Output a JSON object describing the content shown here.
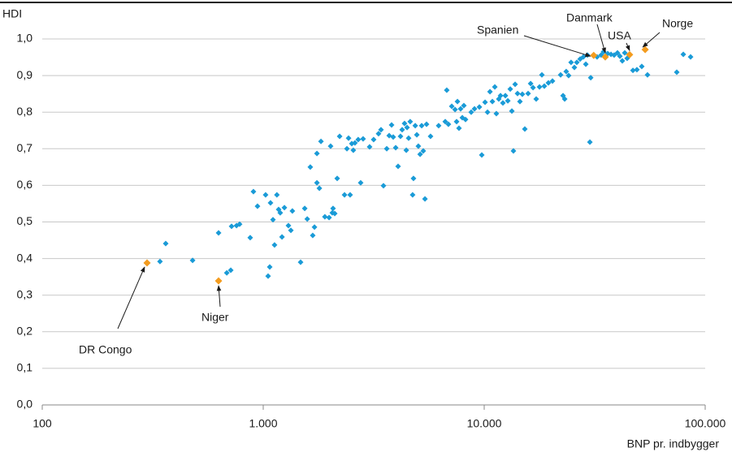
{
  "chart_data": {
    "type": "scatter",
    "ylabel": "HDI",
    "xlabel": "BNP pr. indbygger",
    "xscale": "log",
    "grid": true,
    "xlim": [
      100,
      100000
    ],
    "xticks": [
      100,
      {
        "value": 1000,
        "label": "1.000"
      },
      {
        "value": 10000,
        "label": "10.000"
      },
      {
        "value": 100000,
        "label": "100.000"
      }
    ],
    "ylim": [
      0,
      1
    ],
    "yticks": [
      {
        "value": 0,
        "label": "0,0"
      },
      {
        "value": 0.1,
        "label": "0,1"
      },
      {
        "value": 0.2,
        "label": "0,2"
      },
      {
        "value": 0.3,
        "label": "0,3"
      },
      {
        "value": 0.4,
        "label": "0,4"
      },
      {
        "value": 0.5,
        "label": "0,5"
      },
      {
        "value": 0.6,
        "label": "0,6"
      },
      {
        "value": 0.7,
        "label": "0,7"
      },
      {
        "value": 0.8,
        "label": "0,8"
      },
      {
        "value": 0.9,
        "label": "0,9"
      },
      {
        "value": 1,
        "label": "1,0"
      }
    ],
    "series": [
      {
        "color": "#1a9bd7",
        "x": [
          341,
          362,
          479,
          628,
          684,
          713,
          719,
          757,
          782,
          873,
          903,
          942,
          1025,
          1052,
          1070,
          1079,
          1107,
          1125,
          1153,
          1174,
          1194,
          1216,
          1247,
          1300,
          1334,
          1355,
          1476,
          1541,
          1582,
          1633,
          1675,
          1706,
          1750,
          1750,
          1795,
          1825,
          1901,
          1986,
          2018,
          2054,
          2070,
          2107,
          2161,
          2217,
          2333,
          2392,
          2433,
          2473,
          2516,
          2557,
          2600,
          2690,
          2760,
          2831,
          3030,
          3160,
          3325,
          3412,
          3500,
          3622,
          3715,
          3810,
          3875,
          3975,
          4077,
          4180,
          4253,
          4360,
          4440,
          4477,
          4550,
          4624,
          4743,
          4786,
          4875,
          4955,
          5035,
          5129,
          5212,
          5300,
          5395,
          5483,
          5717,
          6220,
          6663,
          6770,
          6887,
          7130,
          7380,
          7500,
          7566,
          7690,
          7820,
          7960,
          8090,
          8230,
          8730,
          9040,
          9510,
          9750,
          10090,
          10350,
          10620,
          10890,
          11170,
          11350,
          11640,
          11850,
          12150,
          12470,
          12790,
          13120,
          13340,
          13560,
          13800,
          14150,
          14510,
          14880,
          15270,
          15800,
          16220,
          16630,
          17190,
          17790,
          18240,
          18710,
          19520,
          20370,
          22170,
          22740,
          23130,
          23500,
          24100,
          24720,
          25590,
          26250,
          27170,
          28110,
          28830,
          29320,
          30070,
          30340,
          32420,
          33810,
          34670,
          35300,
          36210,
          37480,
          38730,
          40090,
          41110,
          42170,
          43250,
          44360,
          47100,
          49090,
          51640,
          54810,
          74360,
          79620,
          85900
        ],
        "values": [
          0.392,
          0.441,
          0.395,
          0.47,
          0.361,
          0.368,
          0.488,
          0.49,
          0.494,
          0.457,
          0.583,
          0.543,
          0.574,
          0.352,
          0.377,
          0.552,
          0.506,
          0.437,
          0.574,
          0.534,
          0.525,
          0.459,
          0.539,
          0.49,
          0.477,
          0.53,
          0.39,
          0.537,
          0.508,
          0.65,
          0.463,
          0.486,
          0.607,
          0.687,
          0.592,
          0.72,
          0.514,
          0.512,
          0.707,
          0.525,
          0.537,
          0.523,
          0.619,
          0.734,
          0.574,
          0.7,
          0.729,
          0.574,
          0.714,
          0.696,
          0.716,
          0.725,
          0.607,
          0.727,
          0.705,
          0.725,
          0.741,
          0.752,
          0.599,
          0.7,
          0.736,
          0.765,
          0.732,
          0.703,
          0.652,
          0.734,
          0.752,
          0.769,
          0.696,
          0.758,
          0.729,
          0.774,
          0.574,
          0.619,
          0.763,
          0.738,
          0.707,
          0.685,
          0.763,
          0.694,
          0.563,
          0.767,
          0.734,
          0.763,
          0.774,
          0.86,
          0.767,
          0.816,
          0.807,
          0.774,
          0.829,
          0.756,
          0.809,
          0.785,
          0.818,
          0.78,
          0.8,
          0.809,
          0.814,
          0.683,
          0.827,
          0.8,
          0.856,
          0.829,
          0.869,
          0.796,
          0.836,
          0.845,
          0.825,
          0.845,
          0.831,
          0.863,
          0.803,
          0.694,
          0.876,
          0.851,
          0.829,
          0.849,
          0.754,
          0.851,
          0.878,
          0.867,
          0.836,
          0.869,
          0.902,
          0.871,
          0.88,
          0.885,
          0.902,
          0.845,
          0.836,
          0.911,
          0.9,
          0.936,
          0.922,
          0.936,
          0.945,
          0.951,
          0.931,
          0.956,
          0.718,
          0.894,
          0.951,
          0.956,
          0.965,
          0.949,
          0.96,
          0.958,
          0.956,
          0.962,
          0.953,
          0.94,
          0.962,
          0.947,
          0.914,
          0.916,
          0.925,
          0.902,
          0.909,
          0.958,
          0.951
        ]
      },
      {
        "color": "#f39c1f",
        "x": [
          298,
          628,
          31300,
          35300,
          45500,
          53500
        ],
        "values": [
          0.388,
          0.339,
          0.955,
          0.951,
          0.957,
          0.971
        ]
      }
    ],
    "annotations": [
      "DR Congo",
      "Niger",
      "Spanien",
      "Danmark",
      "USA",
      "Norge"
    ]
  }
}
